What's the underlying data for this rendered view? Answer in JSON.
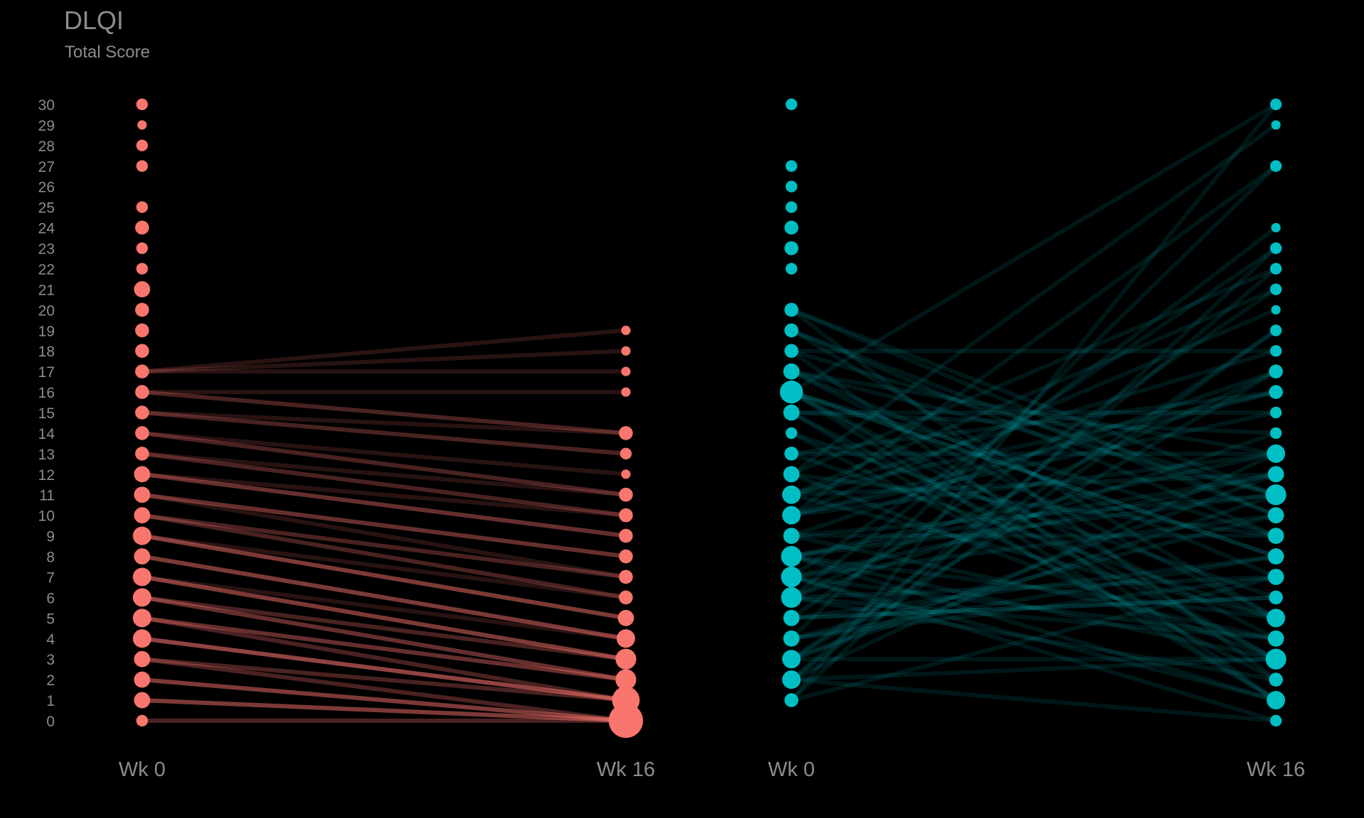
{
  "header": {
    "title": "DLQI",
    "subtitle": "Total Score"
  },
  "chart_data": {
    "type": "scatter",
    "title": "DLQI",
    "subtitle": "Total Score",
    "ylabel": "",
    "ylim": [
      0,
      30
    ],
    "y_ticks": [
      0,
      1,
      2,
      3,
      4,
      5,
      6,
      7,
      8,
      9,
      10,
      11,
      12,
      13,
      14,
      15,
      16,
      17,
      18,
      19,
      20,
      21,
      22,
      23,
      24,
      25,
      26,
      27,
      28,
      29,
      30
    ],
    "grid": false,
    "legend": "none",
    "panels": [
      {
        "color": "#f8766d",
        "x_labels": [
          "Wk 0",
          "Wk 16"
        ],
        "wk0": {
          "scores": [
            0,
            1,
            2,
            3,
            4,
            5,
            6,
            7,
            8,
            9,
            10,
            11,
            12,
            13,
            14,
            15,
            16,
            17,
            18,
            19,
            20,
            21,
            22,
            23,
            24,
            25,
            27,
            28,
            29,
            30
          ],
          "counts": [
            2,
            4,
            4,
            4,
            5,
            5,
            5,
            5,
            4,
            5,
            4,
            4,
            4,
            3,
            3,
            3,
            3,
            3,
            3,
            3,
            3,
            4,
            2,
            2,
            3,
            2,
            2,
            2,
            1,
            2
          ]
        },
        "wk16": {
          "scores": [
            0,
            1,
            2,
            3,
            4,
            5,
            6,
            7,
            8,
            9,
            10,
            11,
            12,
            13,
            14,
            16,
            17,
            18,
            19
          ],
          "counts": [
            12,
            9,
            6,
            6,
            5,
            4,
            3,
            3,
            3,
            3,
            3,
            3,
            1,
            2,
            3,
            1,
            1,
            1,
            1
          ]
        }
      },
      {
        "color": "#00bfc4",
        "x_labels": [
          "Wk 0",
          "Wk 16"
        ],
        "wk0": {
          "scores": [
            1,
            2,
            3,
            4,
            5,
            6,
            7,
            8,
            9,
            10,
            11,
            12,
            13,
            14,
            15,
            16,
            17,
            18,
            19,
            20,
            22,
            23,
            24,
            25,
            26,
            27,
            30
          ],
          "counts": [
            3,
            5,
            5,
            4,
            4,
            6,
            6,
            6,
            4,
            5,
            5,
            4,
            3,
            2,
            4,
            7,
            4,
            3,
            3,
            3,
            2,
            3,
            3,
            2,
            2,
            2,
            2
          ]
        },
        "wk16": {
          "scores": [
            0,
            1,
            2,
            3,
            4,
            5,
            6,
            7,
            8,
            9,
            10,
            11,
            12,
            13,
            14,
            15,
            16,
            17,
            18,
            19,
            20,
            21,
            22,
            23,
            24,
            27,
            29,
            30
          ],
          "counts": [
            2,
            5,
            3,
            6,
            4,
            5,
            3,
            4,
            4,
            4,
            4,
            6,
            4,
            5,
            2,
            2,
            3,
            3,
            2,
            2,
            1,
            2,
            2,
            2,
            1,
            2,
            1,
            2
          ]
        }
      }
    ]
  }
}
